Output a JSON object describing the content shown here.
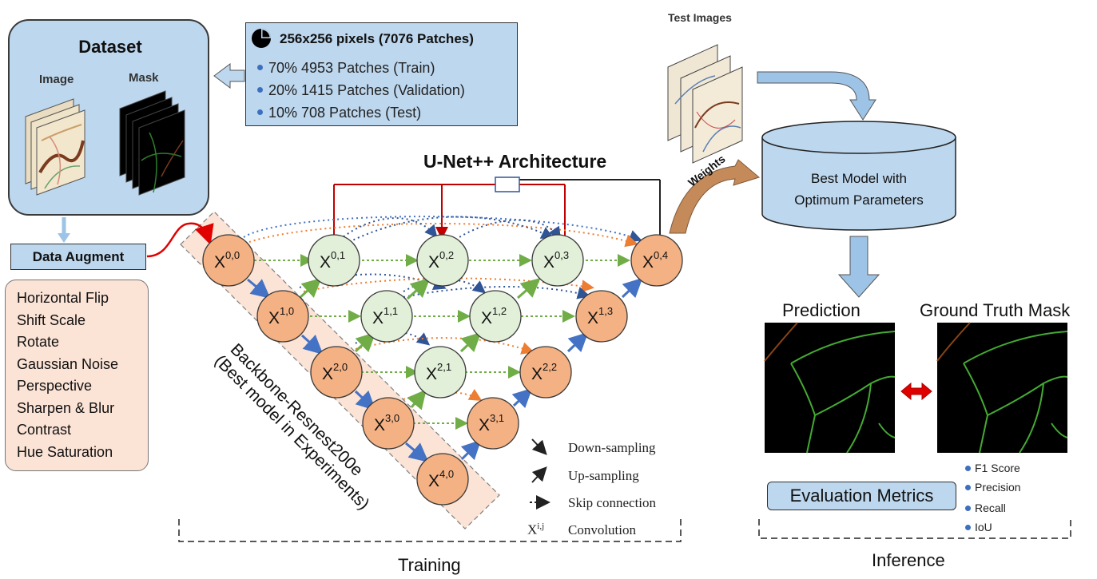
{
  "dataset": {
    "title": "Dataset",
    "image_label": "Image",
    "mask_label": "Mask"
  },
  "split": {
    "title": "256x256 pixels (7076 Patches)",
    "items": [
      "70% 4953 Patches (Train)",
      "20% 1415 Patches (Validation)",
      "10% 708 Patches (Test)"
    ]
  },
  "augment": {
    "button": "Data Augment",
    "items": [
      "Horizontal Flip",
      "Shift Scale",
      "Rotate",
      "Gaussian Noise",
      "Perspective",
      "Sharpen & Blur",
      "Contrast",
      "Hue Saturation"
    ]
  },
  "architecture": {
    "title": "U-Net++ Architecture",
    "backbone_line1": "Backbone-Resnest200e",
    "backbone_line2": "(Best model in Experiments)",
    "nodes": [
      {
        "id": "0,0",
        "base": "X",
        "sup": "0,0",
        "type": "encoder"
      },
      {
        "id": "1,0",
        "base": "X",
        "sup": "1,0",
        "type": "encoder"
      },
      {
        "id": "2,0",
        "base": "X",
        "sup": "2,0",
        "type": "encoder"
      },
      {
        "id": "3,0",
        "base": "X",
        "sup": "3,0",
        "type": "encoder"
      },
      {
        "id": "4,0",
        "base": "X",
        "sup": "4,0",
        "type": "encoder"
      },
      {
        "id": "0,1",
        "base": "X",
        "sup": "0,1",
        "type": "nested"
      },
      {
        "id": "1,1",
        "base": "X",
        "sup": "1,1",
        "type": "nested"
      },
      {
        "id": "2,1",
        "base": "X",
        "sup": "2,1",
        "type": "nested"
      },
      {
        "id": "0,2",
        "base": "X",
        "sup": "0,2",
        "type": "nested"
      },
      {
        "id": "1,2",
        "base": "X",
        "sup": "1,2",
        "type": "nested"
      },
      {
        "id": "0,3",
        "base": "X",
        "sup": "0,3",
        "type": "nested"
      },
      {
        "id": "3,1",
        "base": "X",
        "sup": "3,1",
        "type": "decoder"
      },
      {
        "id": "2,2",
        "base": "X",
        "sup": "2,2",
        "type": "decoder"
      },
      {
        "id": "1,3",
        "base": "X",
        "sup": "1,3",
        "type": "decoder"
      },
      {
        "id": "0,4",
        "base": "X",
        "sup": "0,4",
        "type": "decoder"
      }
    ],
    "colors": {
      "encoder": "#f4b183",
      "nested": "#e2f0d9",
      "decoder": "#f4b183",
      "down": "#4472c4",
      "up": "#70ad47",
      "skip_red": "#c00000"
    }
  },
  "legend": {
    "down": "Down-sampling",
    "up": "Up-sampling",
    "skip": "Skip connection",
    "conv_symbol": "X",
    "conv_sup": "i,j",
    "conv": "Convolution"
  },
  "weights_label": "Weights",
  "test_images_label": "Test Images",
  "best_model": {
    "line1": "Best Model with",
    "line2": "Optimum Parameters"
  },
  "prediction_label": "Prediction",
  "ground_truth_label": "Ground Truth Mask",
  "evaluation": {
    "button": "Evaluation Metrics",
    "metrics": [
      "F1 Score",
      "Precision",
      "Recall",
      "IoU"
    ]
  },
  "section_training": "Training",
  "section_inference": "Inference"
}
